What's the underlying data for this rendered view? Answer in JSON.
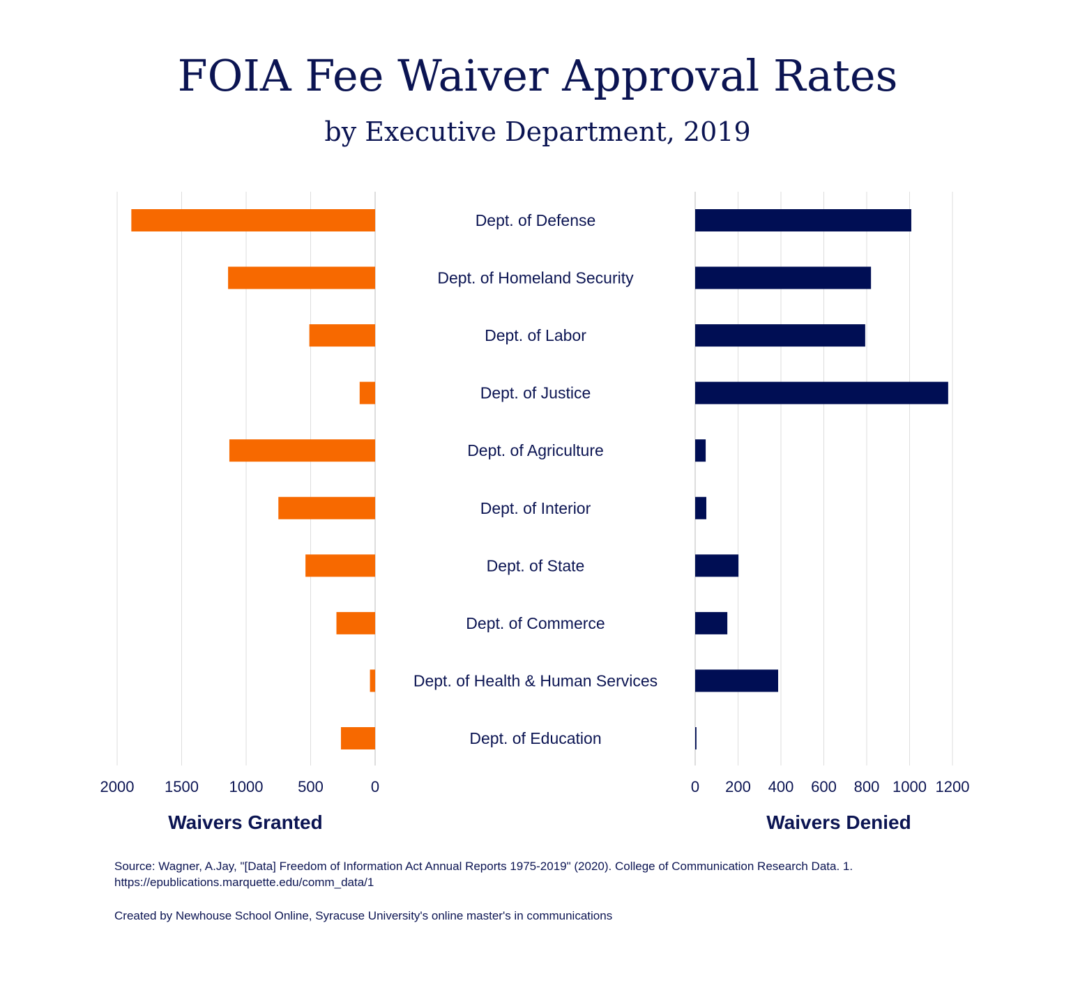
{
  "chart_data": [
    {
      "type": "bar",
      "orientation": "horizontal",
      "direction": "right-to-left",
      "title": "FOIA Fee Waiver Approval Rates",
      "subtitle": "by Executive Department, 2019",
      "xlabel": "Waivers Granted",
      "categories": [
        "Dept. of Defense",
        "Dept. of Homeland Security",
        "Dept. of Labor",
        "Dept. of Justice",
        "Dept. of Agriculture",
        "Dept. of Interior",
        "Dept. of State",
        "Dept. of Commerce",
        "Dept. of Health & Human Services",
        "Dept. of Education"
      ],
      "values": [
        1890,
        1140,
        510,
        120,
        1130,
        750,
        540,
        300,
        40,
        265
      ],
      "xlim": [
        0,
        2000
      ],
      "ticks": [
        "2000",
        "1500",
        "1000",
        "500",
        "0"
      ],
      "tick_values": [
        2000,
        1500,
        1000,
        500,
        0
      ],
      "grid": true,
      "color": "#f76900"
    },
    {
      "type": "bar",
      "orientation": "horizontal",
      "xlabel": "Waivers Denied",
      "categories": [
        "Dept. of Defense",
        "Dept. of Homeland Security",
        "Dept. of Labor",
        "Dept. of Justice",
        "Dept. of Agriculture",
        "Dept. of Interior",
        "Dept. of State",
        "Dept. of Commerce",
        "Dept. of Health & Human Services",
        "Dept. of Education"
      ],
      "values": [
        1008,
        820,
        793,
        1180,
        49,
        52,
        202,
        150,
        387,
        6
      ],
      "xlim": [
        0,
        1200
      ],
      "ticks": [
        "0",
        "200",
        "400",
        "600",
        "800",
        "1000",
        "1200"
      ],
      "tick_values": [
        0,
        200,
        400,
        600,
        800,
        1000,
        1200
      ],
      "grid": true,
      "color": "#000e54"
    }
  ],
  "footer": {
    "source_line1": "Source: Wagner, A.Jay, \"[Data] Freedom of Information Act Annual Reports 1975-2019\" (2020). College of Communication Research Data. 1.",
    "source_line2": "https://epublications.marquette.edu/comm_data/1",
    "credit": "Created by Newhouse School Online, Syracuse University's online master's in communications"
  }
}
